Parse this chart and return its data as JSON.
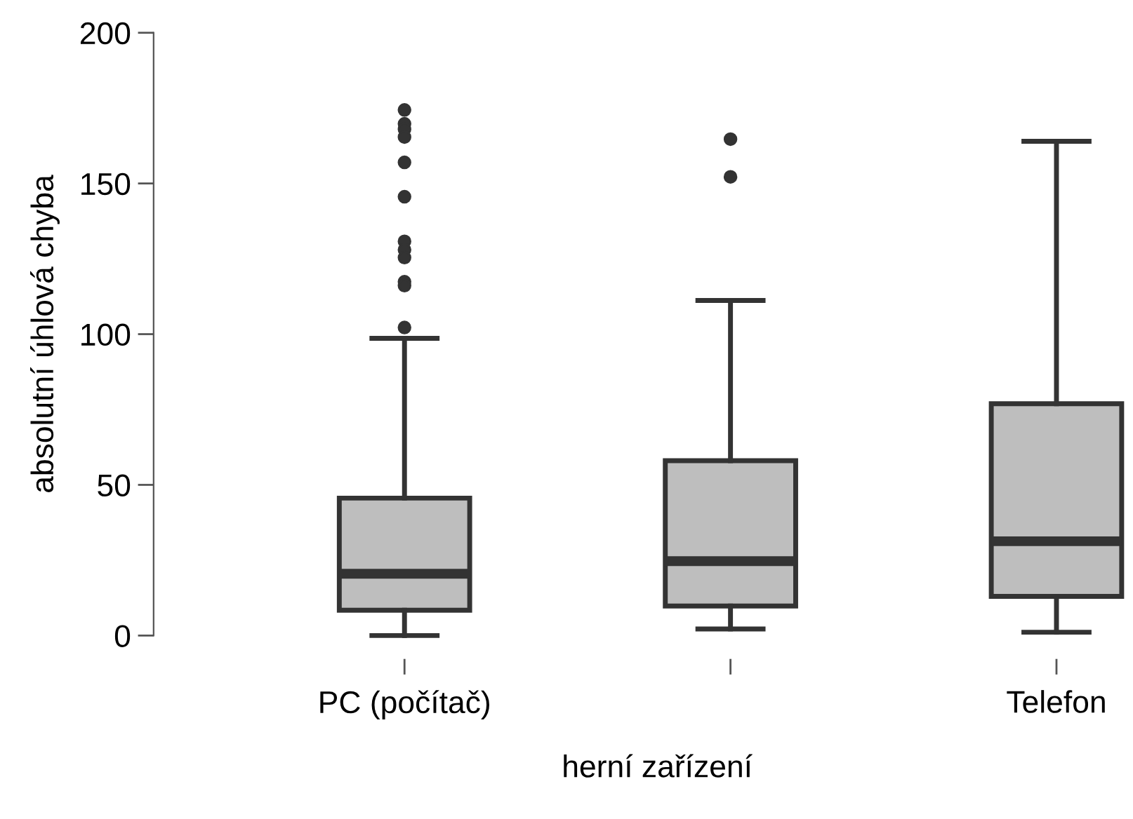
{
  "chart_data": {
    "type": "box",
    "xlabel": "herní zařízení",
    "ylabel": "absolutní úhlová chyba",
    "categories": [
      "PC (počítač)",
      null,
      "Telefon"
    ],
    "color": "#bebebe",
    "boxes": [
      {
        "low": 0,
        "q1": 8.4,
        "median": 20.5,
        "q3": 45.6,
        "high": 98.6,
        "outliers": [
          174.4,
          169.8,
          168,
          165.4,
          157,
          145.6,
          130.8,
          128,
          125.4,
          117.4,
          116.1,
          102.2
        ]
      },
      {
        "low": 2.2,
        "q1": 9.8,
        "median": 24.7,
        "q3": 58,
        "high": 111.2,
        "outliers": [
          164.7,
          152.2
        ]
      },
      {
        "low": 1.1,
        "q1": 13,
        "median": 31.3,
        "q3": 76.9,
        "high": 164
      }
    ],
    "ylim": [
      0,
      200
    ],
    "yticks": [
      0,
      50,
      100,
      150,
      200
    ],
    "grid": false
  }
}
